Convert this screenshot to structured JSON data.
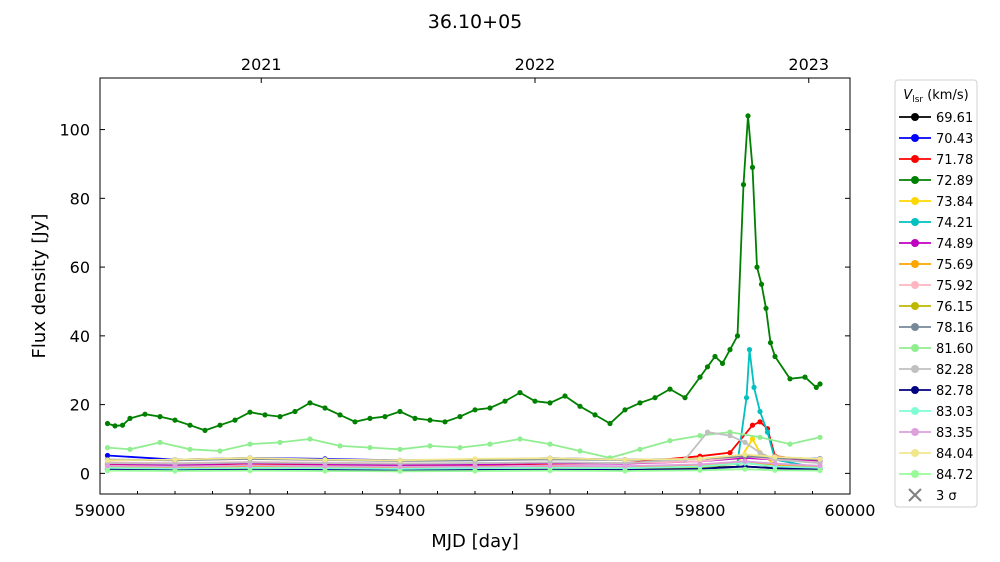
{
  "chart_data": {
    "type": "line",
    "title": "36.10+05",
    "xlabel": "MJD [day]",
    "ylabel": "Flux density [Jy]",
    "xlim": [
      59000,
      60000
    ],
    "ylim": [
      -6,
      115
    ],
    "xticks": [
      59000,
      59200,
      59400,
      59600,
      59800,
      60000
    ],
    "yticks": [
      0,
      20,
      40,
      60,
      80,
      100
    ],
    "top_axis": {
      "ticks": [
        {
          "label": "2021",
          "mjd": 59215
        },
        {
          "label": "2022",
          "mjd": 59580
        },
        {
          "label": "2023",
          "mjd": 59945
        }
      ]
    },
    "legend": {
      "title": "V_lsr (km/s)",
      "placement": "outside-right"
    },
    "series": [
      {
        "name": "69.61",
        "color": "#000000",
        "x": [
          59010,
          59100,
          59200,
          59300,
          59400,
          59500,
          59600,
          59700,
          59800,
          59860,
          59900,
          59960
        ],
        "y": [
          1.5,
          1.3,
          1.5,
          1.4,
          1.2,
          1.3,
          1.5,
          1.4,
          1.6,
          2.0,
          1.5,
          1.4
        ]
      },
      {
        "name": "70.43",
        "color": "#0000ff",
        "x": [
          59010,
          59100,
          59200,
          59300,
          59400,
          59500,
          59600,
          59700,
          59800,
          59860,
          59900,
          59960
        ],
        "y": [
          5.2,
          4.0,
          4.5,
          4.2,
          3.8,
          4.0,
          4.4,
          4.0,
          4.2,
          5.0,
          4.5,
          4.3
        ]
      },
      {
        "name": "71.78",
        "color": "#ff0000",
        "x": [
          59010,
          59100,
          59200,
          59300,
          59400,
          59500,
          59600,
          59700,
          59800,
          59840,
          59870,
          59880,
          59890,
          59900,
          59960
        ],
        "y": [
          2.5,
          2.2,
          2.4,
          2.5,
          2.3,
          2.4,
          2.8,
          3.0,
          5.0,
          6.0,
          14.0,
          15.0,
          13.0,
          5.0,
          3.5
        ]
      },
      {
        "name": "72.89",
        "color": "#008000",
        "x": [
          59010,
          59020,
          59030,
          59040,
          59060,
          59080,
          59100,
          59120,
          59140,
          59160,
          59180,
          59200,
          59220,
          59240,
          59260,
          59280,
          59300,
          59320,
          59340,
          59360,
          59380,
          59400,
          59420,
          59440,
          59460,
          59480,
          59500,
          59520,
          59540,
          59560,
          59580,
          59600,
          59620,
          59640,
          59660,
          59680,
          59700,
          59720,
          59740,
          59760,
          59780,
          59800,
          59810,
          59820,
          59830,
          59840,
          59850,
          59858,
          59864,
          59870,
          59876,
          59882,
          59888,
          59894,
          59900,
          59920,
          59940,
          59955,
          59960
        ],
        "y": [
          14.5,
          13.8,
          14.0,
          16.0,
          17.2,
          16.5,
          15.5,
          14.0,
          12.5,
          14.0,
          15.5,
          17.8,
          17.0,
          16.5,
          18.0,
          20.5,
          19.0,
          17.0,
          15.0,
          16.0,
          16.5,
          18.0,
          16.0,
          15.5,
          15.0,
          16.5,
          18.5,
          19.0,
          21.0,
          23.5,
          21.0,
          20.5,
          22.5,
          19.5,
          17.0,
          14.5,
          18.5,
          20.5,
          22.0,
          24.5,
          22.0,
          28.0,
          31.0,
          34.0,
          32.0,
          36.0,
          40.0,
          84.0,
          104.0,
          89.0,
          60.0,
          55.0,
          48.0,
          38.0,
          34.0,
          27.5,
          28.0,
          25.0,
          26.0
        ]
      },
      {
        "name": "73.84",
        "color": "#ffd700",
        "x": [
          59010,
          59100,
          59200,
          59300,
          59400,
          59500,
          59600,
          59700,
          59800,
          59850,
          59870,
          59880,
          59900,
          59960
        ],
        "y": [
          1.8,
          1.6,
          1.7,
          1.6,
          1.5,
          1.6,
          1.7,
          1.6,
          2.0,
          3.0,
          10.0,
          6.0,
          2.5,
          1.8
        ]
      },
      {
        "name": "74.21",
        "color": "#00c0c0",
        "x": [
          59010,
          59100,
          59200,
          59300,
          59400,
          59500,
          59600,
          59700,
          59800,
          59850,
          59862,
          59866,
          59872,
          59880,
          59890,
          59900,
          59960
        ],
        "y": [
          1.0,
          1.0,
          1.0,
          1.0,
          1.0,
          1.0,
          1.0,
          1.0,
          1.5,
          3.0,
          22.0,
          36.0,
          25.0,
          18.0,
          12.0,
          4.0,
          1.5
        ]
      },
      {
        "name": "74.89",
        "color": "#c000c0",
        "x": [
          59010,
          59100,
          59200,
          59300,
          59400,
          59500,
          59600,
          59700,
          59800,
          59860,
          59900,
          59960
        ],
        "y": [
          2.8,
          2.5,
          3.0,
          2.7,
          2.4,
          2.6,
          3.0,
          2.8,
          3.5,
          4.5,
          4.0,
          3.5
        ]
      },
      {
        "name": "75.69",
        "color": "#ffa500",
        "x": [
          59010,
          59100,
          59200,
          59300,
          59400,
          59500,
          59600,
          59700,
          59800,
          59860,
          59900,
          59960
        ],
        "y": [
          2.0,
          1.8,
          2.0,
          1.9,
          1.7,
          1.8,
          2.0,
          1.9,
          2.5,
          3.5,
          2.5,
          2.0
        ]
      },
      {
        "name": "75.92",
        "color": "#ffb6c1",
        "x": [
          59010,
          59100,
          59200,
          59300,
          59400,
          59500,
          59600,
          59700,
          59800,
          59860,
          59900,
          59960
        ],
        "y": [
          3.2,
          3.0,
          3.3,
          3.1,
          2.9,
          3.0,
          3.2,
          3.0,
          3.5,
          5.0,
          4.0,
          3.2
        ]
      },
      {
        "name": "76.15",
        "color": "#bdb800",
        "x": [
          59010,
          59100,
          59200,
          59300,
          59400,
          59500,
          59600,
          59700,
          59800,
          59860,
          59900,
          59960
        ],
        "y": [
          1.4,
          1.2,
          1.4,
          1.3,
          1.2,
          1.3,
          1.4,
          1.3,
          1.8,
          3.0,
          2.0,
          1.5
        ]
      },
      {
        "name": "78.16",
        "color": "#778899",
        "x": [
          59010,
          59100,
          59200,
          59300,
          59400,
          59500,
          59600,
          59700,
          59800,
          59860,
          59900,
          59960
        ],
        "y": [
          4.0,
          3.8,
          4.2,
          3.9,
          3.6,
          3.8,
          4.1,
          3.9,
          4.2,
          5.0,
          4.5,
          4.0
        ]
      },
      {
        "name": "81.60",
        "color": "#90ee90",
        "x": [
          59010,
          59040,
          59080,
          59120,
          59160,
          59200,
          59240,
          59280,
          59320,
          59360,
          59400,
          59440,
          59480,
          59520,
          59560,
          59600,
          59640,
          59680,
          59720,
          59760,
          59800,
          59840,
          59880,
          59920,
          59960
        ],
        "y": [
          7.5,
          7.0,
          9.0,
          7.0,
          6.5,
          8.5,
          9.0,
          10.0,
          8.0,
          7.5,
          7.0,
          8.0,
          7.5,
          8.5,
          10.0,
          8.5,
          6.5,
          4.5,
          7.0,
          9.5,
          11.0,
          12.0,
          10.5,
          8.5,
          10.5
        ]
      },
      {
        "name": "82.28",
        "color": "#c0c0c0",
        "x": [
          59010,
          59100,
          59200,
          59300,
          59400,
          59500,
          59600,
          59700,
          59780,
          59810,
          59840,
          59860,
          59880,
          59900,
          59960
        ],
        "y": [
          3.0,
          2.8,
          3.2,
          3.0,
          2.8,
          3.0,
          3.2,
          3.0,
          4.0,
          12.0,
          11.0,
          9.0,
          6.0,
          4.0,
          3.0
        ]
      },
      {
        "name": "82.78",
        "color": "#000080",
        "x": [
          59010,
          59100,
          59200,
          59300,
          59400,
          59500,
          59600,
          59700,
          59800,
          59860,
          59900,
          59960
        ],
        "y": [
          1.2,
          1.0,
          1.1,
          1.0,
          0.9,
          1.0,
          1.1,
          1.0,
          1.3,
          2.0,
          1.5,
          1.2
        ]
      },
      {
        "name": "83.03",
        "color": "#7fffd4",
        "x": [
          59010,
          59100,
          59200,
          59300,
          59400,
          59500,
          59600,
          59700,
          59800,
          59860,
          59900,
          59960
        ],
        "y": [
          1.6,
          1.4,
          1.6,
          1.5,
          1.3,
          1.5,
          1.6,
          1.5,
          2.0,
          3.0,
          2.0,
          1.6
        ]
      },
      {
        "name": "83.35",
        "color": "#dda0dd",
        "x": [
          59010,
          59100,
          59200,
          59300,
          59400,
          59500,
          59600,
          59700,
          59800,
          59860,
          59900,
          59960
        ],
        "y": [
          2.2,
          2.0,
          2.3,
          2.1,
          1.9,
          2.0,
          2.2,
          2.1,
          2.6,
          3.5,
          2.8,
          2.2
        ]
      },
      {
        "name": "84.04",
        "color": "#f0e68c",
        "x": [
          59010,
          59100,
          59200,
          59300,
          59400,
          59500,
          59600,
          59700,
          59800,
          59860,
          59900,
          59960
        ],
        "y": [
          3.8,
          4.0,
          4.5,
          4.0,
          3.8,
          4.2,
          4.4,
          4.0,
          4.2,
          5.5,
          4.8,
          4.2
        ]
      },
      {
        "name": "84.72",
        "color": "#98fb98",
        "x": [
          59010,
          59100,
          59200,
          59300,
          59400,
          59500,
          59600,
          59700,
          59800,
          59860,
          59900,
          59960
        ],
        "y": [
          0.8,
          0.7,
          0.8,
          0.7,
          0.6,
          0.7,
          0.8,
          0.7,
          0.9,
          1.2,
          0.9,
          0.8
        ]
      }
    ],
    "sigma_marker": {
      "label": "3 σ",
      "color": "#808080",
      "marker": "x"
    }
  }
}
